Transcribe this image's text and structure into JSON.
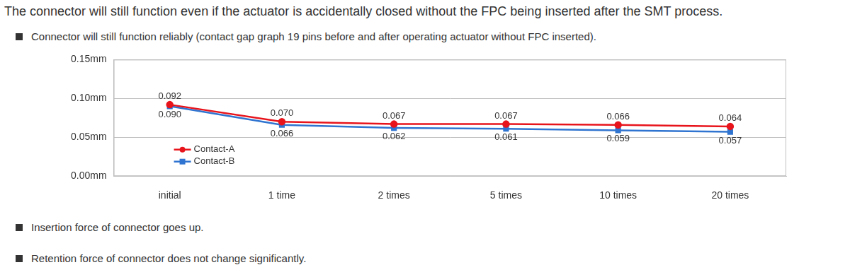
{
  "heading": "The connector will still function even if the actuator is accidentally closed without the FPC being inserted after the SMT process.",
  "bullets": [
    "Connector will still function reliably (contact gap graph 19 pins before and after operating actuator without FPC inserted).",
    "Insertion force of connector goes up.",
    "Retention force of connector does not change significantly."
  ],
  "chart_data": {
    "type": "line",
    "categories": [
      "initial",
      "1 time",
      "2 times",
      "5 times",
      "10 times",
      "20 times"
    ],
    "series": [
      {
        "name": "Contact-A",
        "color": "#e8141c",
        "marker": "circle",
        "line_style": "solid",
        "values": [
          0.092,
          0.07,
          0.067,
          0.067,
          0.066,
          0.064
        ],
        "value_labels": [
          "0.092",
          "0.070",
          "0.067",
          "0.067",
          "0.066",
          "0.064"
        ]
      },
      {
        "name": "Contact-B",
        "color": "#2f74d0",
        "marker": "square",
        "line_style": "solid",
        "values": [
          0.09,
          0.066,
          0.062,
          0.061,
          0.059,
          0.057
        ],
        "value_labels": [
          "0.090",
          "0.066",
          "0.062",
          "0.061",
          "0.059",
          "0.057"
        ]
      }
    ],
    "ylim": [
      0,
      0.15
    ],
    "yticks": [
      {
        "value": 0,
        "label": "0.00mm"
      },
      {
        "value": 0.05,
        "label": "0.05mm"
      },
      {
        "value": 0.1,
        "label": "0.10mm"
      },
      {
        "value": 0.15,
        "label": "0.15mm"
      }
    ],
    "grid": true,
    "legend": "lower left",
    "data_labels": true
  }
}
